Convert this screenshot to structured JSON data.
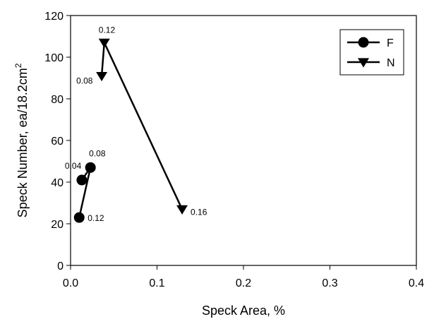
{
  "chart_data": {
    "type": "line",
    "xlabel": "Speck Area, %",
    "ylabel_main": "Speck Number, ea/18.2cm",
    "ylabel_sup": "2",
    "xlim": [
      0.0,
      0.4
    ],
    "ylim": [
      0,
      120
    ],
    "x_ticks": [
      "0.0",
      "0.1",
      "0.2",
      "0.3",
      "0.4"
    ],
    "x_tick_values": [
      0.0,
      0.1,
      0.2,
      0.3,
      0.4
    ],
    "y_ticks": [
      "0",
      "20",
      "40",
      "60",
      "80",
      "100",
      "120"
    ],
    "y_tick_values": [
      0,
      20,
      40,
      60,
      80,
      100,
      120
    ],
    "grid": false,
    "legend_position": "top-right",
    "series": [
      {
        "name": "F",
        "marker": "circle",
        "color": "#000000",
        "points": [
          {
            "x": 0.013,
            "y": 41,
            "label": "0.04"
          },
          {
            "x": 0.023,
            "y": 47,
            "label": "0.08"
          },
          {
            "x": 0.01,
            "y": 23,
            "label": "0.12"
          }
        ]
      },
      {
        "name": "N",
        "marker": "triangle-down",
        "color": "#000000",
        "points": [
          {
            "x": 0.036,
            "y": 91,
            "label": "0.08"
          },
          {
            "x": 0.039,
            "y": 107,
            "label": "0.12"
          },
          {
            "x": 0.129,
            "y": 27,
            "label": "0.16"
          }
        ]
      }
    ]
  }
}
